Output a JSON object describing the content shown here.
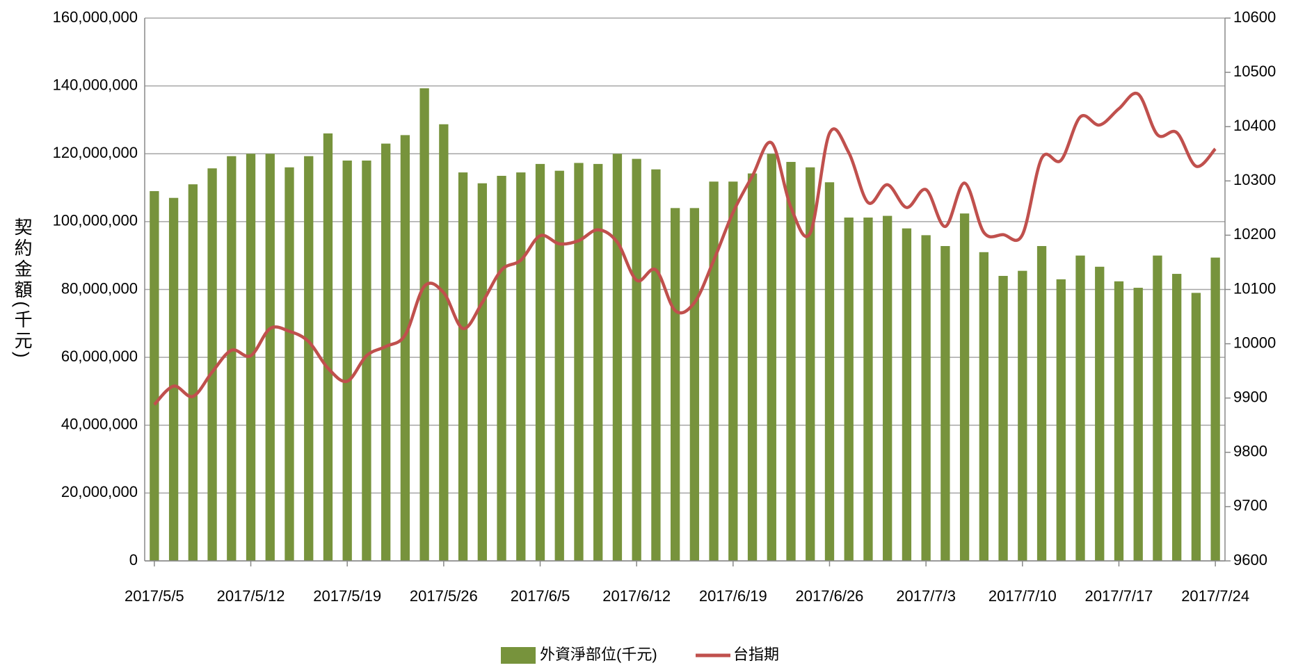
{
  "chart_data": {
    "type": "bar-line",
    "y_label": "契約金額(千元)",
    "categories": [
      "2017/5/5",
      null,
      null,
      null,
      null,
      "2017/5/12",
      null,
      null,
      null,
      null,
      "2017/5/19",
      null,
      null,
      null,
      null,
      "2017/5/26",
      null,
      null,
      null,
      null,
      "2017/6/5",
      null,
      null,
      null,
      null,
      "2017/6/12",
      null,
      null,
      null,
      null,
      "2017/6/19",
      null,
      null,
      null,
      null,
      "2017/6/26",
      null,
      null,
      null,
      null,
      "2017/7/3",
      null,
      null,
      null,
      null,
      "2017/7/10",
      null,
      null,
      null,
      null,
      "2017/7/17",
      null,
      null,
      null,
      null,
      "2017/7/24"
    ],
    "series": [
      {
        "name": "外資淨部位(千元)",
        "type": "bar",
        "color": "#77933c",
        "values": [
          109000000,
          107000000,
          111000000,
          115700000,
          119300000,
          120000000,
          120000000,
          116000000,
          119300000,
          126000000,
          118000000,
          118000000,
          123000000,
          125500000,
          139300000,
          128700000,
          114500000,
          111300000,
          113500000,
          114500000,
          117000000,
          115000000,
          117300000,
          117000000,
          120000000,
          118500000,
          115400000,
          104000000,
          104000000,
          111800000,
          111800000,
          114200000,
          120000000,
          117600000,
          116000000,
          111600000,
          101200000,
          101200000,
          101700000,
          98000000,
          96000000,
          92800000,
          102400000,
          91000000,
          84000000,
          85500000,
          92800000,
          83000000,
          90000000,
          86700000,
          82400000,
          80500000,
          90000000,
          84600000,
          79000000,
          89400000
        ]
      },
      {
        "name": "台指期",
        "type": "line",
        "axis": "y2",
        "color": "#c0504d",
        "values": [
          9888,
          9922,
          9903,
          9948,
          9988,
          9978,
          10028,
          10023,
          10004,
          9955,
          9931,
          9978,
          9995,
          10016,
          10106,
          10094,
          10028,
          10076,
          10136,
          10154,
          10199,
          10184,
          10190,
          10210,
          10187,
          10117,
          10136,
          10061,
          10076,
          10154,
          10242,
          10309,
          10370,
          10251,
          10204,
          10388,
          10352,
          10260,
          10293,
          10251,
          10284,
          10216,
          10296,
          10205,
          10201,
          10201,
          10342,
          10338,
          10418,
          10403,
          10433,
          10460,
          10385,
          10389,
          10327,
          10359
        ]
      }
    ],
    "ylim": [
      0,
      160000000
    ],
    "yticks": [
      0,
      {
        "value": 20000000,
        "label": "20,000,000"
      },
      {
        "value": 40000000,
        "label": "40,000,000"
      },
      {
        "value": 60000000,
        "label": "60,000,000"
      },
      {
        "value": 80000000,
        "label": "80,000,000"
      },
      {
        "value": 100000000,
        "label": "100,000,000"
      },
      {
        "value": 120000000,
        "label": "120,000,000"
      },
      {
        "value": 140000000,
        "label": "140,000,000"
      },
      {
        "value": 160000000,
        "label": "160,000,000"
      }
    ],
    "y2lim": [
      9600,
      10600
    ],
    "y2ticks": [
      9600,
      9700,
      9800,
      9900,
      10000,
      10100,
      10200,
      10300,
      10400,
      10500,
      10600
    ],
    "grid": true,
    "legend": "bottom"
  }
}
